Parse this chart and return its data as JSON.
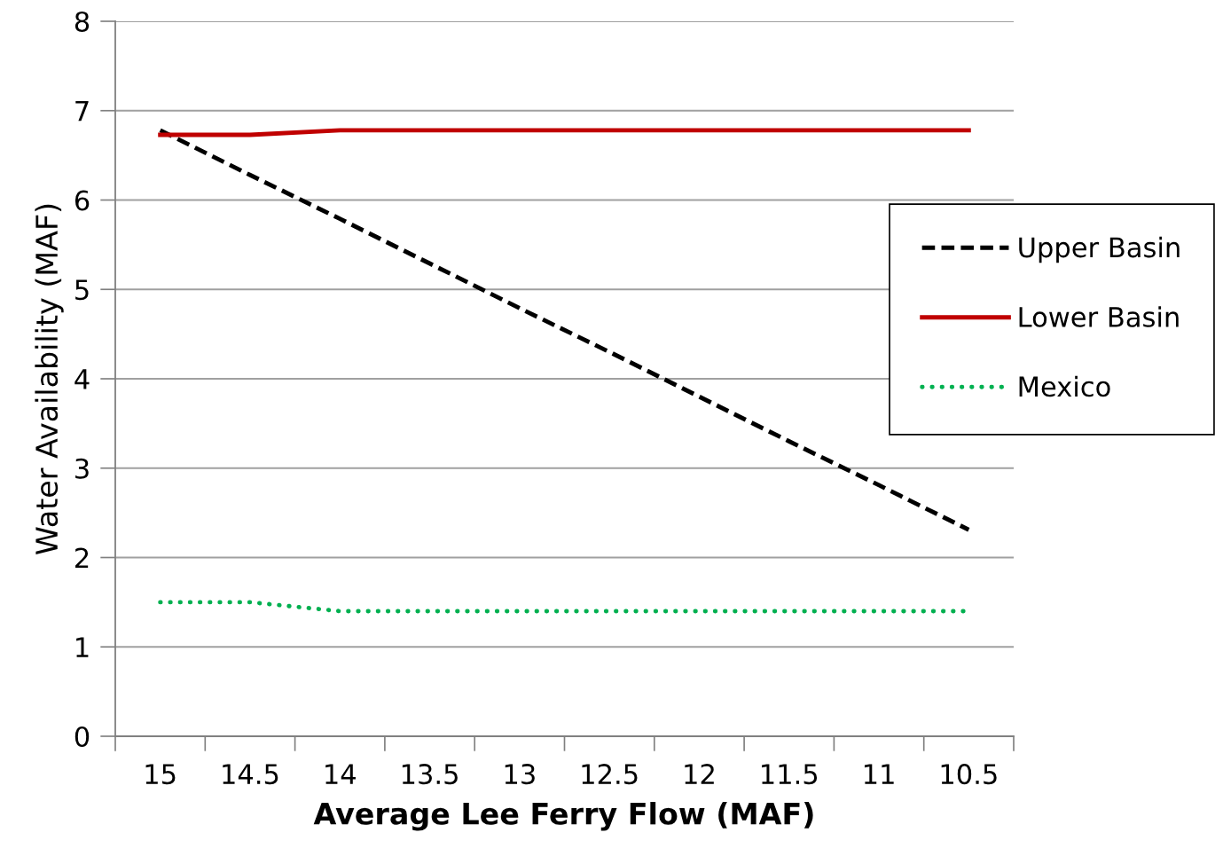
{
  "chart_data": {
    "type": "line",
    "xlabel": "Average Lee Ferry Flow (MAF)",
    "ylabel": "Water Availability (MAF)",
    "categories": [
      "15",
      "14.5",
      "14",
      "13.5",
      "13",
      "12.5",
      "12",
      "11.5",
      "11",
      "10.5"
    ],
    "ylim": [
      0,
      8
    ],
    "yticks": [
      0,
      1,
      2,
      3,
      4,
      5,
      6,
      7,
      8
    ],
    "grid": "y",
    "legend": "right",
    "marker": "none",
    "series": [
      {
        "name": "Upper Basin",
        "color": "#000000",
        "line_style": "dashed",
        "values": [
          6.78,
          6.28,
          5.79,
          5.29,
          4.79,
          4.3,
          3.8,
          3.3,
          2.81,
          2.31
        ]
      },
      {
        "name": "Lower Basin",
        "color": "#c00000",
        "line_style": "solid",
        "values": [
          6.73,
          6.73,
          6.78,
          6.78,
          6.78,
          6.78,
          6.78,
          6.78,
          6.78,
          6.78
        ]
      },
      {
        "name": "Mexico",
        "color": "#00b050",
        "line_style": "dotted",
        "values": [
          1.5,
          1.5,
          1.4,
          1.4,
          1.4,
          1.4,
          1.4,
          1.4,
          1.4,
          1.4
        ]
      }
    ]
  }
}
